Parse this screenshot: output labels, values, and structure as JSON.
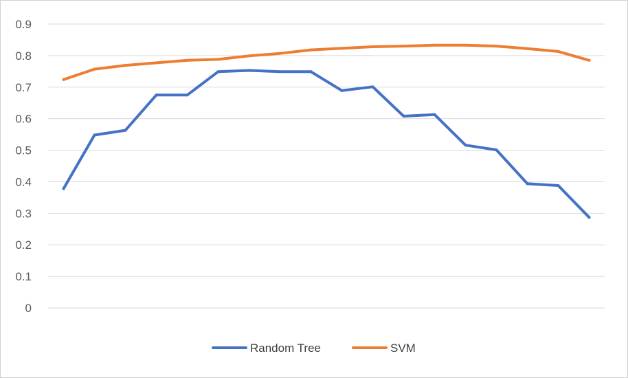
{
  "chart_data": {
    "type": "line",
    "title": "",
    "xlabel": "",
    "ylabel": "",
    "ylim": [
      0,
      0.9
    ],
    "yticks": [
      0,
      0.1,
      0.2,
      0.3,
      0.4,
      0.5,
      0.6,
      0.7,
      0.8,
      0.9
    ],
    "y_tick_labels": [
      "0",
      "0.1",
      "0.2",
      "0.3",
      "0.4",
      "0.5",
      "0.6",
      "0.7",
      "0.8",
      "0.9"
    ],
    "x": [
      1,
      2,
      3,
      4,
      5,
      6,
      7,
      8,
      9,
      10,
      11,
      12,
      13,
      14,
      15,
      16,
      17,
      18
    ],
    "grid": "horizontal",
    "legend": "bottom",
    "series": [
      {
        "name": "Random Tree",
        "color": "#4472C4",
        "values": [
          0.378,
          0.548,
          0.563,
          0.675,
          0.675,
          0.749,
          0.753,
          0.749,
          0.749,
          0.689,
          0.701,
          0.608,
          0.613,
          0.516,
          0.501,
          0.394,
          0.388,
          0.287
        ]
      },
      {
        "name": "SVM",
        "color": "#ED7D31",
        "values": [
          0.724,
          0.757,
          0.769,
          0.777,
          0.785,
          0.788,
          0.799,
          0.807,
          0.818,
          0.823,
          0.828,
          0.83,
          0.833,
          0.833,
          0.83,
          0.822,
          0.813,
          0.785
        ]
      }
    ]
  }
}
